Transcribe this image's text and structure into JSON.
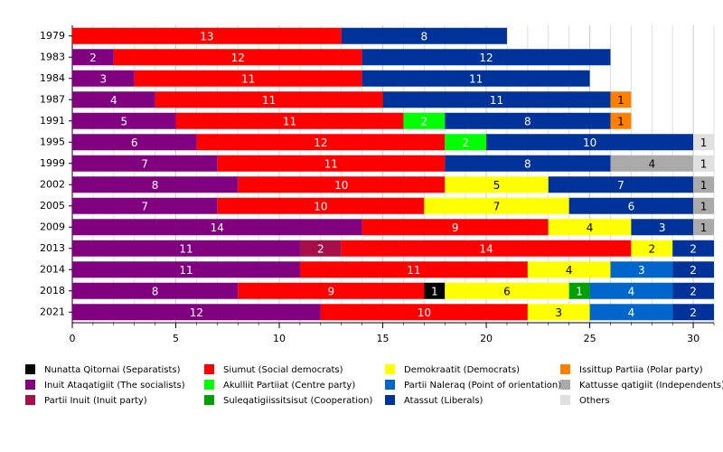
{
  "chart_data": {
    "type": "stacked-bar",
    "categories": [
      "1979",
      "1983",
      "1984",
      "1987",
      "1991",
      "1995",
      "1999",
      "2002",
      "2005",
      "2009",
      "2013",
      "2014",
      "2018",
      "2021"
    ],
    "series": [
      {
        "name": "Inuit Ataqatigiit (The socialists)",
        "color": "#800080",
        "values": [
          null,
          2,
          3,
          4,
          5,
          6,
          7,
          8,
          7,
          14,
          11,
          11,
          8,
          12
        ]
      },
      {
        "name": "Partii Inuit (Inuit party)",
        "color": "#a50f4a",
        "values": [
          null,
          null,
          null,
          null,
          null,
          null,
          null,
          null,
          null,
          null,
          2,
          null,
          null,
          null
        ]
      },
      {
        "name": "Siumut (Social democrats)",
        "color": "#ff0000",
        "values": [
          13,
          12,
          11,
          11,
          11,
          12,
          11,
          10,
          10,
          9,
          14,
          11,
          9,
          10
        ]
      },
      {
        "name": "Nunatta Qitornai (Separatists)",
        "color": "#000000",
        "values": [
          null,
          null,
          null,
          null,
          null,
          null,
          null,
          null,
          null,
          null,
          null,
          null,
          1,
          null
        ]
      },
      {
        "name": "Akulliit Partiiat (Centre party)",
        "color": "#00ff00",
        "values": [
          null,
          null,
          null,
          null,
          2,
          2,
          null,
          null,
          null,
          null,
          null,
          null,
          null,
          null
        ]
      },
      {
        "name": "Demokraatit (Democrats)",
        "color": "#ffff00",
        "values": [
          null,
          null,
          null,
          null,
          null,
          null,
          null,
          5,
          7,
          4,
          2,
          4,
          6,
          3
        ]
      },
      {
        "name": "Suleqatigiissitsisut (Cooperation)",
        "color": "#00a000",
        "values": [
          null,
          null,
          null,
          null,
          null,
          null,
          null,
          null,
          null,
          null,
          null,
          null,
          1,
          null
        ]
      },
      {
        "name": "Partii Naleraq (Point of orientation)",
        "color": "#0066cc",
        "values": [
          null,
          null,
          null,
          null,
          null,
          null,
          null,
          null,
          null,
          null,
          null,
          3,
          4,
          4
        ]
      },
      {
        "name": "Atassut (Liberals)",
        "color": "#00339a",
        "values": [
          8,
          12,
          11,
          11,
          8,
          10,
          8,
          7,
          6,
          3,
          2,
          2,
          2,
          2
        ]
      },
      {
        "name": "Kattusse qatigiit (Independents)",
        "color": "#aaaaaa",
        "values": [
          null,
          null,
          null,
          null,
          null,
          null,
          4,
          1,
          1,
          1,
          null,
          null,
          null,
          null
        ]
      },
      {
        "name": "Issittup Partiia (Polar party)",
        "color": "#ff8000",
        "values": [
          null,
          null,
          null,
          1,
          1,
          null,
          null,
          null,
          null,
          null,
          null,
          null,
          null,
          null
        ]
      },
      {
        "name": "Others",
        "color": "#e0e0e0",
        "values": [
          null,
          null,
          null,
          null,
          null,
          1,
          1,
          null,
          null,
          null,
          null,
          null,
          null,
          null
        ]
      }
    ],
    "xlim": [
      0,
      31
    ],
    "xticks": [
      0,
      5,
      10,
      15,
      20,
      25,
      30
    ],
    "grid": true
  }
}
